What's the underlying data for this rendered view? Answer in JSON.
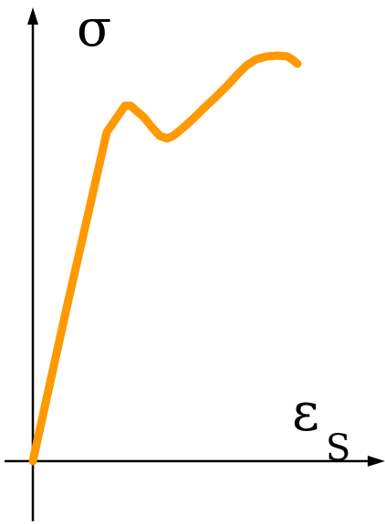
{
  "chart_data": {
    "type": "line",
    "ylabel": "σ",
    "xlabel": "ε",
    "xlabel_subscript": "S",
    "ticks": "none",
    "grid": false,
    "legend": "none",
    "series": [
      {
        "color": "#FF9900",
        "x": [
          0,
          18,
          37,
          64,
          81,
          101,
          107,
          113,
          122,
          130,
          139,
          147,
          154,
          165,
          176,
          185,
          201,
          215,
          224,
          234,
          245,
          256,
          268,
          279,
          284,
          290
        ],
        "y": [
          0,
          82,
          168,
          286,
          361,
          390,
          390,
          385,
          377,
          367,
          357,
          354,
          357,
          366,
          376,
          385,
          400,
          414,
          424,
          434,
          441,
          444,
          445,
          444,
          441,
          436
        ]
      }
    ]
  }
}
